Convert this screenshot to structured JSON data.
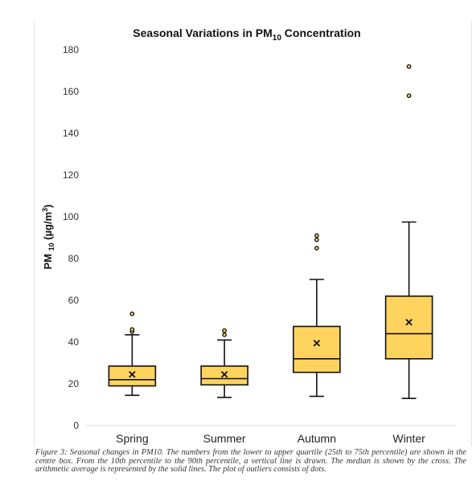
{
  "chart_data": {
    "type": "box",
    "title_main": "Seasonal Variations in PM",
    "title_sub": "10",
    "title_end": " Concentration",
    "ylabel_main": "PM ",
    "ylabel_sub": "10",
    "ylabel_end": " (µg/m",
    "ylabel_sup": "3",
    "ylabel_close": ")",
    "ylim": [
      0,
      180
    ],
    "yticks": [
      0,
      20,
      40,
      60,
      80,
      100,
      120,
      140,
      160,
      180
    ],
    "grid": false,
    "categories": [
      "Spring",
      "Summer",
      "Autumn",
      "Winter"
    ],
    "boxes": [
      {
        "category": "Spring",
        "whisker_low": 14.5,
        "q1": 19,
        "median": 22,
        "q3": 28.5,
        "whisker_high": 43.5,
        "mean": 24.5,
        "outliers": [
          45,
          46,
          53.5
        ]
      },
      {
        "category": "Summer",
        "whisker_low": 13.5,
        "q1": 19.5,
        "median": 22.5,
        "q3": 28.5,
        "whisker_high": 41,
        "mean": 24.5,
        "outliers": [
          43.5,
          45.5
        ]
      },
      {
        "category": "Autumn",
        "whisker_low": 14,
        "q1": 25.5,
        "median": 32,
        "q3": 47.5,
        "whisker_high": 70,
        "mean": 39.5,
        "outliers": [
          85,
          89,
          91
        ]
      },
      {
        "category": "Winter",
        "whisker_low": 13,
        "q1": 32,
        "median": 44,
        "q3": 62,
        "whisker_high": 97.5,
        "mean": 49.5,
        "outliers": [
          158,
          172
        ]
      }
    ],
    "colors": {
      "box_fill": "#FFD45E",
      "stroke": "#111111"
    }
  },
  "caption": "Figure 3: Seasonal changes in PM10. The numbers from the lower to upper quartile (25th to 75th percentile) are shown in the centre box. From the 10th percentile to the 90th percentile, a vertical line is drawn. The median is shown by the cross. The arithmetic average is represented by the solid lines. The plot of outliers consists of dots."
}
